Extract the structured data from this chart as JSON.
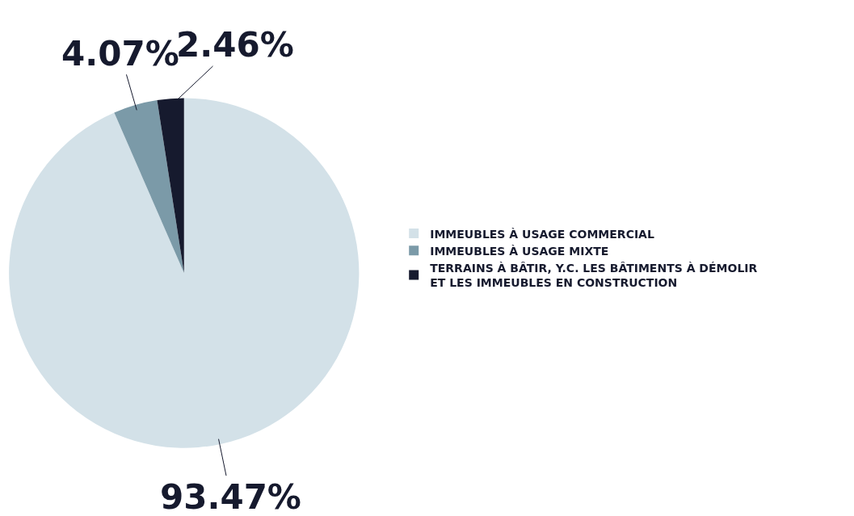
{
  "chart_data": {
    "type": "pie",
    "categories": [
      "IMMEUBLES À USAGE COMMERCIAL",
      "IMMEUBLES À USAGE MIXTE",
      "TERRAINS À BÂTIR, Y.C. LES BÂTIMENTS À DÉMOLIR ET LES IMMEUBLES EN CONSTRUCTION"
    ],
    "values": [
      93.47,
      4.07,
      2.46
    ],
    "value_labels": [
      "93.47%",
      "4.07%",
      "2.46%"
    ],
    "colors": [
      "#d3e1e8",
      "#7b9aa8",
      "#161a2e"
    ],
    "legend": "right"
  }
}
